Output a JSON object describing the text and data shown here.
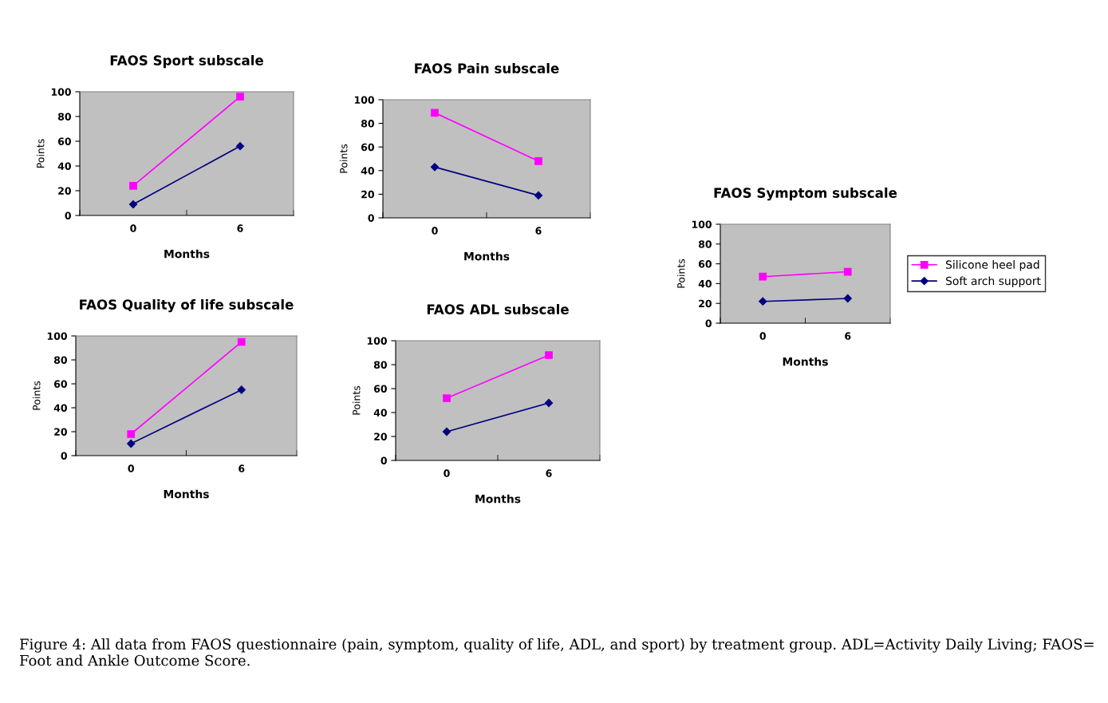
{
  "chart_data": [
    {
      "type": "line",
      "title": "FAOS Sport subscale",
      "xlabel": "Months",
      "ylabel": "Points",
      "categories": [
        "0",
        "6"
      ],
      "ylim": [
        0,
        100
      ],
      "yticks": [
        0,
        20,
        40,
        60,
        80,
        100
      ],
      "grid": false,
      "legend": false,
      "series": [
        {
          "color": "#ff00ff",
          "marker": "square",
          "values": [
            24,
            96
          ]
        },
        {
          "color": "#000080",
          "marker": "diamond",
          "values": [
            9,
            56
          ]
        }
      ]
    },
    {
      "type": "line",
      "title": "FAOS Pain subscale",
      "xlabel": "Months",
      "ylabel": "Points",
      "categories": [
        "0",
        "6"
      ],
      "ylim": [
        0,
        100
      ],
      "yticks": [
        0,
        20,
        40,
        60,
        80,
        100
      ],
      "grid": false,
      "legend": false,
      "series": [
        {
          "color": "#ff00ff",
          "marker": "square",
          "values": [
            89,
            48
          ]
        },
        {
          "color": "#000080",
          "marker": "diamond",
          "values": [
            43,
            19
          ]
        }
      ]
    },
    {
      "type": "line",
      "title": "FAOS Symptom subscale",
      "xlabel": "Months",
      "ylabel": "Points",
      "categories": [
        "0",
        "6"
      ],
      "ylim": [
        0,
        100
      ],
      "yticks": [
        0,
        20,
        40,
        60,
        80,
        100
      ],
      "grid": false,
      "legend": "right",
      "series": [
        {
          "name": "Silicone heel pad",
          "color": "#ff00ff",
          "marker": "square",
          "values": [
            47,
            52
          ]
        },
        {
          "name": "Soft arch support",
          "color": "#000080",
          "marker": "diamond",
          "values": [
            22,
            25
          ]
        }
      ]
    },
    {
      "type": "line",
      "title": "FAOS Quality of life subscale",
      "xlabel": "Months",
      "ylabel": "Points",
      "categories": [
        "0",
        "6"
      ],
      "ylim": [
        0,
        100
      ],
      "yticks": [
        0,
        20,
        40,
        60,
        80,
        100
      ],
      "grid": false,
      "legend": false,
      "series": [
        {
          "color": "#ff00ff",
          "marker": "square",
          "values": [
            18,
            95
          ]
        },
        {
          "color": "#000080",
          "marker": "diamond",
          "values": [
            10,
            55
          ]
        }
      ]
    },
    {
      "type": "line",
      "title": "FAOS ADL subscale",
      "xlabel": "Months",
      "ylabel": "Points",
      "categories": [
        "0",
        "6"
      ],
      "ylim": [
        0,
        100
      ],
      "yticks": [
        0,
        20,
        40,
        60,
        80,
        100
      ],
      "grid": false,
      "legend": false,
      "annotations": [
        "Figure 4: All data from FAOS questionnaire (pain, symptom, quality of life, ADL, and sport) by treatment group. ADL=Activity Daily Living; FAOS= Foot and Ankle Outcome Score."
      ],
      "series": [
        {
          "color": "#ff00ff",
          "marker": "square",
          "values": [
            52,
            88
          ]
        },
        {
          "color": "#000080",
          "marker": "diamond",
          "values": [
            24,
            48
          ]
        }
      ]
    }
  ]
}
